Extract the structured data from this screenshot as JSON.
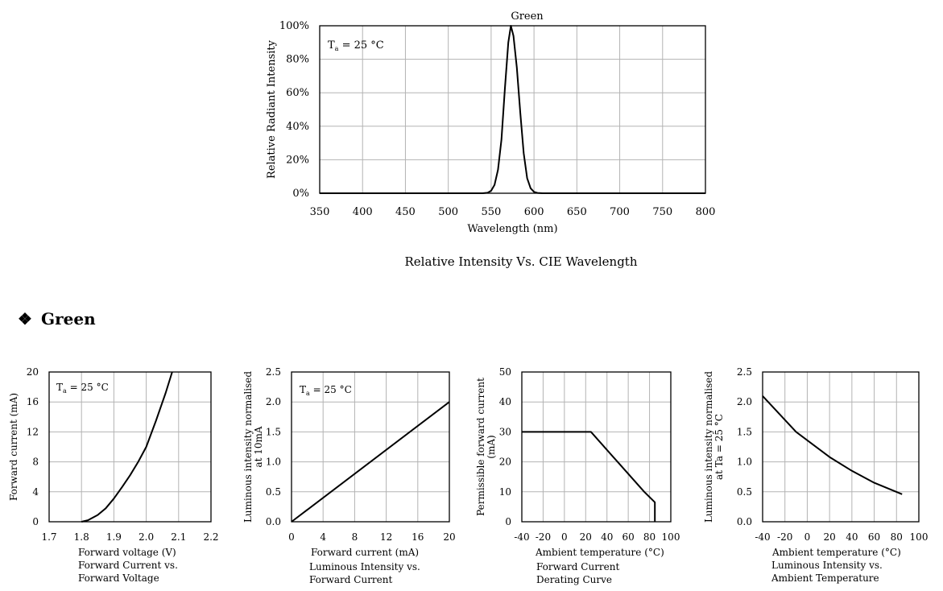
{
  "section": {
    "bullet": "❖",
    "title": "Green"
  },
  "chart_data": [
    {
      "id": "spectrum",
      "type": "line",
      "title": "Green",
      "caption": [
        "Relative Intensity Vs. CIE Wavelength"
      ],
      "xlabel": "Wavelength (nm)",
      "ylabel": "Relative Radiant Intensity",
      "annotation": {
        "main": "T",
        "sub": "a",
        "rest": " = 25 °C"
      },
      "xlim": [
        350,
        800
      ],
      "ylim": [
        0,
        100
      ],
      "xticks": [
        350,
        400,
        450,
        500,
        550,
        600,
        650,
        700,
        750,
        800
      ],
      "yticks": [
        0,
        20,
        40,
        60,
        80,
        100
      ],
      "ytick_labels": [
        "0%",
        "20%",
        "40%",
        "60%",
        "80%",
        "100%"
      ],
      "grid": true,
      "x": [
        350,
        540,
        546,
        550,
        554,
        558,
        562,
        566,
        570,
        573,
        576,
        580,
        584,
        588,
        592,
        596,
        600,
        604,
        610,
        800
      ],
      "y": [
        0,
        0,
        0.3,
        1.5,
        5,
        14,
        32,
        62,
        90,
        100,
        94,
        75,
        48,
        24,
        9,
        3,
        0.8,
        0.2,
        0,
        0
      ]
    },
    {
      "id": "iv",
      "type": "line",
      "caption": [
        "Forward Current vs.",
        "Forward Voltage"
      ],
      "xlabel": "Forward voltage (V)",
      "ylabel": "Forward current (mA)",
      "annotation": {
        "main": "T",
        "sub": "a",
        "rest": " = 25 °C"
      },
      "xlim": [
        1.7,
        2.2
      ],
      "ylim": [
        0,
        20
      ],
      "xticks": [
        1.7,
        1.8,
        1.9,
        2.0,
        2.1,
        2.2
      ],
      "xtick_labels": [
        "1.7",
        "1.8",
        "1.9",
        "2.0",
        "2.1",
        "2.2"
      ],
      "yticks": [
        0,
        4,
        8,
        12,
        16,
        20
      ],
      "grid": true,
      "x": [
        1.8,
        1.82,
        1.85,
        1.875,
        1.9,
        1.925,
        1.95,
        1.975,
        2.0,
        2.03,
        2.06,
        2.08
      ],
      "y": [
        0,
        0.2,
        0.9,
        1.8,
        3.1,
        4.6,
        6.2,
        8.0,
        10.0,
        13.5,
        17.2,
        20
      ]
    },
    {
      "id": "lum-vs-current",
      "type": "line",
      "caption": [
        "Luminous Intensity vs.",
        "Forward Current"
      ],
      "xlabel": "Forward current (mA)",
      "ylabel": [
        "Luminous intensity normalised",
        "at 10mA"
      ],
      "annotation": {
        "main": "T",
        "sub": "a",
        "rest": " = 25 °C"
      },
      "xlim": [
        0,
        20
      ],
      "ylim": [
        0,
        2.5
      ],
      "xticks": [
        0,
        4,
        8,
        12,
        16,
        20
      ],
      "yticks": [
        0,
        0.5,
        1.0,
        1.5,
        2.0,
        2.5
      ],
      "ytick_labels": [
        "0.0",
        "0.5",
        "1.0",
        "1.5",
        "2.0",
        "2.5"
      ],
      "grid": true,
      "x": [
        0,
        20
      ],
      "y": [
        0,
        2.0
      ]
    },
    {
      "id": "derating",
      "type": "line",
      "caption": [
        "Forward Current",
        "Derating  Curve"
      ],
      "xlabel": "Ambient temperature (°C)",
      "ylabel": [
        "Permissible forward current",
        "(mA)"
      ],
      "xlim": [
        -40,
        100
      ],
      "ylim": [
        0,
        50
      ],
      "xticks": [
        -40,
        -20,
        0,
        20,
        40,
        60,
        80,
        100
      ],
      "yticks": [
        0,
        10,
        20,
        30,
        40,
        50
      ],
      "grid": true,
      "x": [
        -40,
        25,
        50,
        75,
        85,
        85
      ],
      "y": [
        30,
        30,
        20,
        10,
        6.5,
        0
      ]
    },
    {
      "id": "lum-vs-temp",
      "type": "line",
      "caption": [
        "Luminous Intensity vs.",
        "Ambient Temperature"
      ],
      "xlabel": "Ambient temperature (°C)",
      "ylabel": [
        "Luminous intensity normalised",
        "at Ta = 25 °C"
      ],
      "xlim": [
        -40,
        100
      ],
      "ylim": [
        0,
        2.5
      ],
      "xticks": [
        -40,
        -20,
        0,
        20,
        40,
        60,
        80,
        100
      ],
      "yticks": [
        0,
        0.5,
        1.0,
        1.5,
        2.0,
        2.5
      ],
      "ytick_labels": [
        "0.0",
        "0.5",
        "1.0",
        "1.5",
        "2.0",
        "2.5"
      ],
      "grid": true,
      "x": [
        -40,
        -10,
        20,
        40,
        60,
        85
      ],
      "y": [
        2.1,
        1.5,
        1.08,
        0.85,
        0.65,
        0.46
      ]
    }
  ]
}
